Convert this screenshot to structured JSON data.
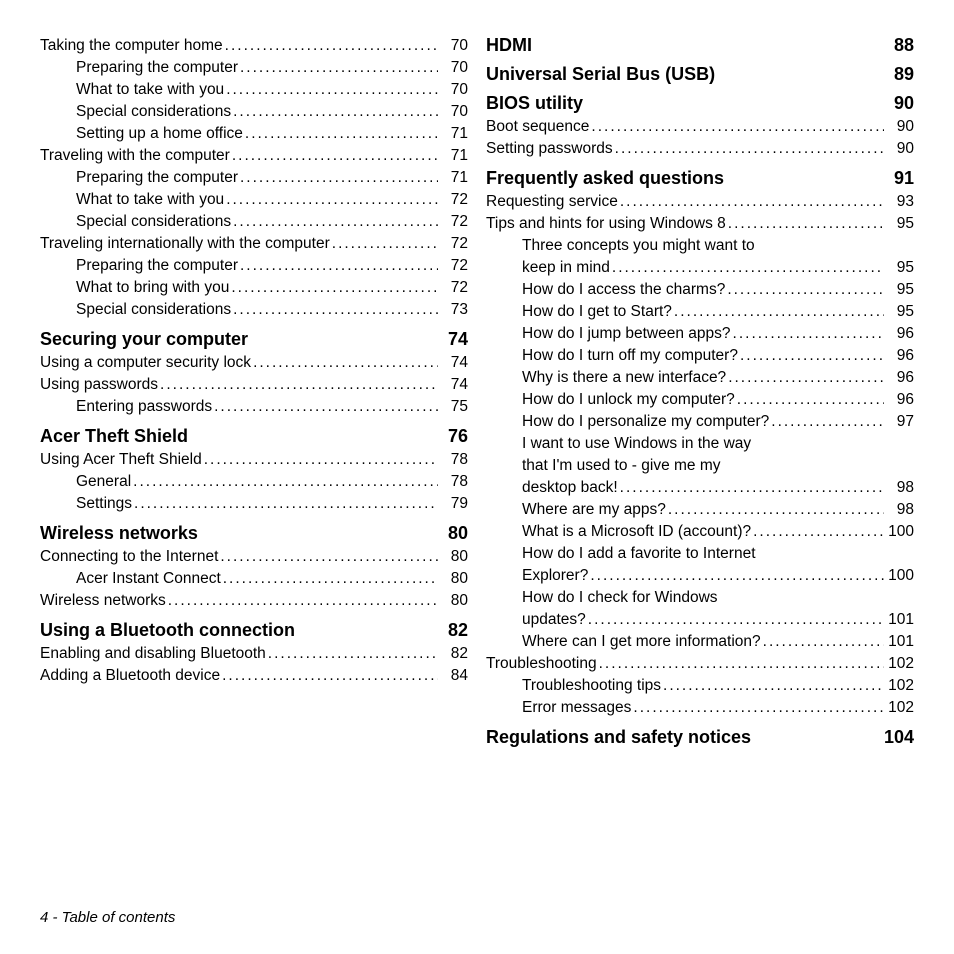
{
  "footer": "4 - Table of contents",
  "left": [
    {
      "type": "item",
      "level": 1,
      "text": "Taking the computer home",
      "page": "70"
    },
    {
      "type": "item",
      "level": 2,
      "text": "Preparing the computer",
      "page": "70"
    },
    {
      "type": "item",
      "level": 2,
      "text": "What to take with you",
      "page": "70"
    },
    {
      "type": "item",
      "level": 2,
      "text": "Special considerations",
      "page": "70"
    },
    {
      "type": "item",
      "level": 2,
      "text": "Setting up a home office",
      "page": "71"
    },
    {
      "type": "item",
      "level": 1,
      "text": "Traveling with the computer",
      "page": "71"
    },
    {
      "type": "item",
      "level": 2,
      "text": "Preparing the computer",
      "page": "71"
    },
    {
      "type": "item",
      "level": 2,
      "text": "What to take with you",
      "page": "72"
    },
    {
      "type": "item",
      "level": 2,
      "text": "Special considerations",
      "page": "72"
    },
    {
      "type": "item",
      "level": 1,
      "text": "Traveling internationally with the computer",
      "page": "72"
    },
    {
      "type": "item",
      "level": 2,
      "text": "Preparing the computer",
      "page": "72"
    },
    {
      "type": "item",
      "level": 2,
      "text": "What to bring with you",
      "page": "72"
    },
    {
      "type": "item",
      "level": 2,
      "text": "Special considerations",
      "page": "73"
    },
    {
      "type": "heading",
      "text": "Securing your computer",
      "page": "74"
    },
    {
      "type": "item",
      "level": 1,
      "text": "Using a computer security lock",
      "page": "74"
    },
    {
      "type": "item",
      "level": 1,
      "text": "Using passwords",
      "page": "74"
    },
    {
      "type": "item",
      "level": 2,
      "text": "Entering passwords",
      "page": "75"
    },
    {
      "type": "heading",
      "text": "Acer Theft Shield",
      "page": "76"
    },
    {
      "type": "item",
      "level": 1,
      "text": "Using Acer Theft Shield",
      "page": "78"
    },
    {
      "type": "item",
      "level": 2,
      "text": "General",
      "page": "78"
    },
    {
      "type": "item",
      "level": 2,
      "text": "Settings",
      "page": "79"
    },
    {
      "type": "heading",
      "text": "Wireless networks",
      "page": "80"
    },
    {
      "type": "item",
      "level": 1,
      "text": "Connecting to the Internet",
      "page": "80"
    },
    {
      "type": "item",
      "level": 2,
      "text": "Acer Instant Connect",
      "page": "80"
    },
    {
      "type": "item",
      "level": 1,
      "text": "Wireless networks",
      "page": "80"
    },
    {
      "type": "heading",
      "text": "Using a Bluetooth connection",
      "page": "82"
    },
    {
      "type": "item",
      "level": 1,
      "text": "Enabling and disabling Bluetooth",
      "page": "82"
    },
    {
      "type": "item",
      "level": 1,
      "text": "Adding a Bluetooth device",
      "page": "84"
    }
  ],
  "right": [
    {
      "type": "heading",
      "first": true,
      "text": "HDMI",
      "page": "88"
    },
    {
      "type": "heading",
      "text": "Universal Serial Bus (USB)",
      "page": "89"
    },
    {
      "type": "heading",
      "text": "BIOS utility",
      "page": "90"
    },
    {
      "type": "item",
      "level": 1,
      "text": "Boot sequence",
      "page": "90"
    },
    {
      "type": "item",
      "level": 1,
      "text": "Setting passwords",
      "page": "90"
    },
    {
      "type": "heading",
      "text": "Frequently asked questions",
      "page": "91"
    },
    {
      "type": "item",
      "level": 1,
      "text": "Requesting service",
      "page": "93"
    },
    {
      "type": "item",
      "level": 1,
      "text": "Tips and hints for using Windows 8",
      "page": "95"
    },
    {
      "type": "wrap",
      "level": 2,
      "lines": [
        "Three concepts you might want to"
      ],
      "last": "keep in mind",
      "page": "95"
    },
    {
      "type": "item",
      "level": 2,
      "text": "How do I access the charms?",
      "page": "95"
    },
    {
      "type": "item",
      "level": 2,
      "text": "How do I get to Start?",
      "page": "95"
    },
    {
      "type": "item",
      "level": 2,
      "text": "How do I jump between apps?",
      "page": "96"
    },
    {
      "type": "item",
      "level": 2,
      "text": "How do I turn off my computer?",
      "page": "96"
    },
    {
      "type": "item",
      "level": 2,
      "text": "Why is there a new interface?",
      "page": "96"
    },
    {
      "type": "item",
      "level": 2,
      "text": "How do I unlock my computer?",
      "page": "96"
    },
    {
      "type": "item",
      "level": 2,
      "text": "How do I personalize my computer?",
      "page": "97"
    },
    {
      "type": "wrap",
      "level": 2,
      "lines": [
        "I want to use Windows in the way",
        "that I'm used to - give me my"
      ],
      "last": "desktop back!",
      "page": "98"
    },
    {
      "type": "item",
      "level": 2,
      "text": "Where are my apps?",
      "page": "98"
    },
    {
      "type": "item",
      "level": 2,
      "text": "What is a Microsoft ID (account)?",
      "page": "100"
    },
    {
      "type": "wrap",
      "level": 2,
      "lines": [
        "How do I add a favorite to Internet"
      ],
      "last": "Explorer?",
      "page": "100"
    },
    {
      "type": "wrap",
      "level": 2,
      "lines": [
        "How do I check for Windows"
      ],
      "last": "updates?",
      "page": "101"
    },
    {
      "type": "item",
      "level": 2,
      "text": "Where can I get more information?",
      "page": "101"
    },
    {
      "type": "item",
      "level": 1,
      "text": "Troubleshooting",
      "page": "102"
    },
    {
      "type": "item",
      "level": 2,
      "text": "Troubleshooting tips",
      "page": "102"
    },
    {
      "type": "item",
      "level": 2,
      "text": "Error messages",
      "page": "102"
    },
    {
      "type": "heading",
      "text": "Regulations and safety notices",
      "page": "104"
    }
  ]
}
